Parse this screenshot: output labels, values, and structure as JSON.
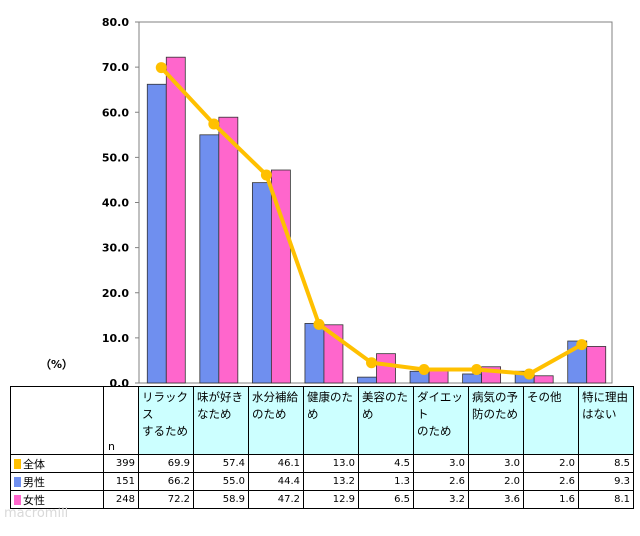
{
  "chart_data": {
    "type": "bar",
    "unit_label": "（%）",
    "ylim": [
      0,
      80
    ],
    "yticks": [
      "0.0",
      "10.0",
      "20.0",
      "30.0",
      "40.0",
      "50.0",
      "60.0",
      "70.0",
      "80.0"
    ],
    "categories": [
      [
        "リラックス",
        "するため"
      ],
      [
        "味が好き",
        "なため"
      ],
      [
        "水分補給",
        "のため"
      ],
      [
        "健康のた",
        "め"
      ],
      [
        "美容のた",
        "め"
      ],
      [
        "ダイエット",
        "のため"
      ],
      [
        "病気の予",
        "防のため"
      ],
      [
        "その他"
      ],
      [
        "特に理由",
        "はない"
      ]
    ],
    "n_label": "n",
    "series": [
      {
        "name": "全体",
        "kind": "line",
        "color": "#ffc000",
        "n": "399",
        "values": [
          69.9,
          57.4,
          46.1,
          13.0,
          4.5,
          3.0,
          3.0,
          2.0,
          8.5
        ],
        "labels": [
          "69.9",
          "57.4",
          "46.1",
          "13.0",
          "4.5",
          "3.0",
          "3.0",
          "2.0",
          "8.5"
        ]
      },
      {
        "name": "男性",
        "kind": "bar",
        "color": "#6f8fef",
        "n": "151",
        "values": [
          66.2,
          55.0,
          44.4,
          13.2,
          1.3,
          2.6,
          2.0,
          2.6,
          9.3
        ],
        "labels": [
          "66.2",
          "55.0",
          "44.4",
          "13.2",
          "1.3",
          "2.6",
          "2.0",
          "2.6",
          "9.3"
        ]
      },
      {
        "name": "女性",
        "kind": "bar",
        "color": "#ff66cc",
        "n": "248",
        "values": [
          72.2,
          58.9,
          47.2,
          12.9,
          6.5,
          3.2,
          3.6,
          1.6,
          8.1
        ],
        "labels": [
          "72.2",
          "58.9",
          "47.2",
          "12.9",
          "6.5",
          "3.2",
          "3.6",
          "1.6",
          "8.1"
        ]
      }
    ]
  },
  "watermark": "macromill"
}
